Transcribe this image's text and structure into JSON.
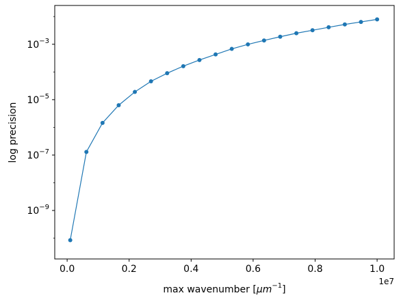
{
  "chart_data": {
    "type": "line",
    "xlabel_prefix": "max wavenumber [",
    "xlabel_unit_base": "μm",
    "xlabel_unit_exp": "−1",
    "xlabel_suffix": "]",
    "ylabel": "log precision",
    "x_offset_label": "1e7",
    "x_scale": "linear",
    "y_scale": "log",
    "xlim": [
      -400000,
      10550000
    ],
    "ylim_log10": [
      -10.75,
      -1.6
    ],
    "grid": false,
    "x_ticks": [
      {
        "value": 0,
        "label": "0.0"
      },
      {
        "value": 2000000,
        "label": "0.2"
      },
      {
        "value": 4000000,
        "label": "0.4"
      },
      {
        "value": 6000000,
        "label": "0.6"
      },
      {
        "value": 8000000,
        "label": "0.8"
      },
      {
        "value": 10000000,
        "label": "1.0"
      }
    ],
    "y_ticks": [
      {
        "exp": -9,
        "label_base": "10",
        "label_exp": "−9"
      },
      {
        "exp": -7,
        "label_base": "10",
        "label_exp": "−7"
      },
      {
        "exp": -5,
        "label_base": "10",
        "label_exp": "−5"
      },
      {
        "exp": -3,
        "label_base": "10",
        "label_exp": "−3"
      }
    ],
    "series": [
      {
        "color": "#1f77b4",
        "marker": "circle",
        "x": [
          100000,
          621053,
          1142105,
          1663158,
          2184211,
          2705263,
          3226316,
          3747368,
          4268421,
          4789474,
          5310526,
          5831579,
          6352632,
          6873684,
          7394737,
          7915789,
          8436842,
          8957895,
          9478947,
          10000000
        ],
        "y": [
          8.5e-11,
          1.3e-07,
          1.45e-06,
          6.3e-06,
          1.9e-05,
          4.6e-05,
          9e-05,
          0.000162,
          0.00027,
          0.00043,
          0.00068,
          0.00099,
          0.00137,
          0.00187,
          0.0025,
          0.0032,
          0.0041,
          0.0052,
          0.0064,
          0.0079
        ]
      }
    ]
  }
}
